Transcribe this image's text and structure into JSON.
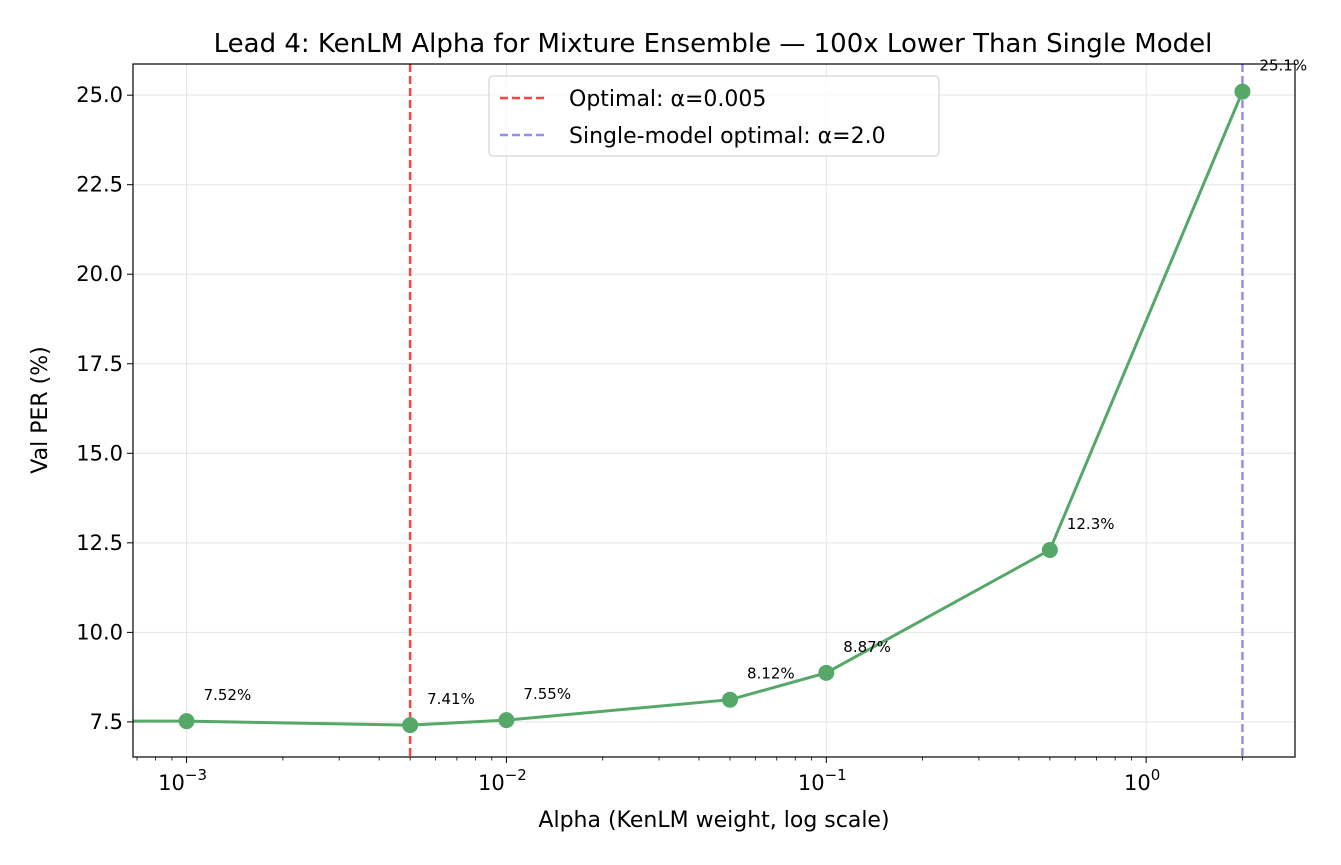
{
  "chart_data": {
    "type": "line",
    "title": "Lead 4: KenLM Alpha for Mixture Ensemble — 100x Lower Than Single Model",
    "xlabel": "Alpha (KenLM weight, log scale)",
    "ylabel": "Val PER (%)",
    "xscale": "log",
    "xlim": [
      0.00068,
      2.92
    ],
    "ylim": [
      6.52,
      25.87
    ],
    "grid": true,
    "x_ticks": [
      {
        "value": 0.001,
        "base": "10",
        "exp": "−3"
      },
      {
        "value": 0.01,
        "base": "10",
        "exp": "−2"
      },
      {
        "value": 0.1,
        "base": "10",
        "exp": "−1"
      },
      {
        "value": 1,
        "base": "10",
        "exp": "0"
      }
    ],
    "y_ticks": [
      "7.5",
      "10.0",
      "12.5",
      "15.0",
      "17.5",
      "20.0",
      "22.5",
      "25.0"
    ],
    "series": [
      {
        "color": "#55a868",
        "x": [
          0.001,
          0.005,
          0.01,
          0.05,
          0.1,
          0.5,
          2.0
        ],
        "y": [
          7.52,
          7.41,
          7.55,
          8.12,
          8.87,
          12.3,
          25.1
        ],
        "labels": [
          "7.52%",
          "7.41%",
          "7.55%",
          "8.12%",
          "8.87%",
          "12.3%",
          "25.1%"
        ]
      }
    ],
    "reference_lines": [
      {
        "x": 0.005,
        "color": "#ff4444",
        "label": "Optimal: α=0.005"
      },
      {
        "x": 2.0,
        "color": "#9090ee",
        "label": "Single-model optimal: α=2.0"
      }
    ],
    "legend_position": "top-center"
  }
}
